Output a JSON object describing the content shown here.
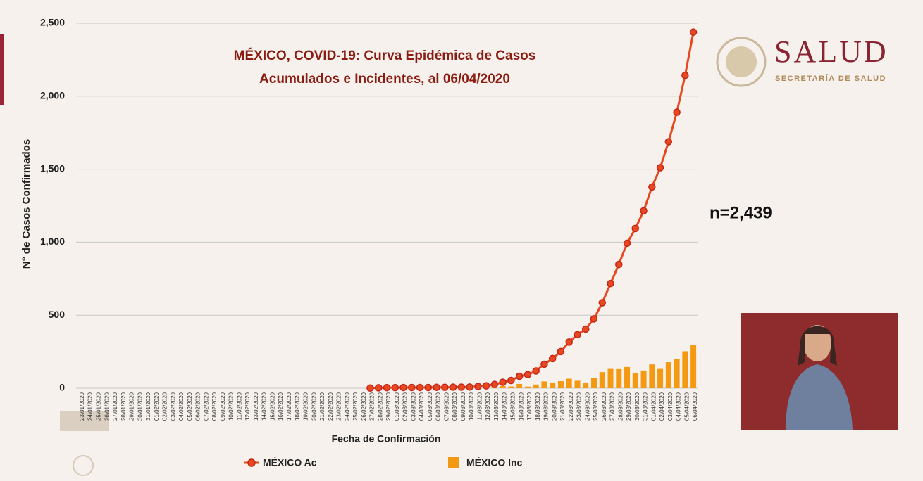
{
  "logo": {
    "title": "SALUD",
    "subtitle": "SECRETARÍA DE SALUD"
  },
  "chart_data": {
    "type": "line-bar",
    "title": [
      "MÉXICO, COVID-19: Curva Epidémica de Casos",
      "Acumulados e Incidentes, al 06/04/2020"
    ],
    "x_label": "Fecha de Confirmación",
    "y_label": "N° de Casos Confirmados",
    "annotation": "n=2,439",
    "legend": "bottom",
    "grid": true,
    "ylim": [
      0,
      2500
    ],
    "yticks": [
      0,
      500,
      {
        "value": 1000,
        "label": "1,000"
      },
      {
        "value": 1500,
        "label": "1,500"
      },
      {
        "value": 2000,
        "label": "2,000"
      },
      {
        "value": 2500,
        "label": "2,500"
      }
    ],
    "categories": [
      "23/01/2020",
      "24/01/2020",
      "25/01/2020",
      "26/01/2020",
      "27/01/2020",
      "28/01/2020",
      "29/01/2020",
      "30/01/2020",
      "31/01/2020",
      "01/02/2020",
      "02/02/2020",
      "03/02/2020",
      "04/02/2020",
      "05/02/2020",
      "06/02/2020",
      "07/02/2020",
      "08/02/2020",
      "09/02/2020",
      "10/02/2020",
      "11/02/2020",
      "12/02/2020",
      "13/02/2020",
      "14/02/2020",
      "15/02/2020",
      "16/02/2020",
      "17/02/2020",
      "18/02/2020",
      "19/02/2020",
      "20/02/2020",
      "21/02/2020",
      "22/02/2020",
      "23/02/2020",
      "24/02/2020",
      "25/02/2020",
      "26/02/2020",
      "27/02/2020",
      "28/02/2020",
      "29/02/2020",
      "01/03/2020",
      "02/03/2020",
      "03/03/2020",
      "04/03/2020",
      "05/03/2020",
      "06/03/2020",
      "07/03/2020",
      "08/03/2020",
      "09/03/2020",
      "10/03/2020",
      "11/03/2020",
      "12/03/2020",
      "13/03/2020",
      "14/03/2020",
      "15/03/2020",
      "16/03/2020",
      "17/03/2020",
      "18/03/2020",
      "19/03/2020",
      "20/03/2020",
      "21/03/2020",
      "22/03/2020",
      "23/03/2020",
      "24/03/2020",
      "25/03/2020",
      "26/03/2020",
      "27/03/2020",
      "28/03/2020",
      "29/03/2020",
      "30/03/2020",
      "31/03/2020",
      "01/04/2020",
      "02/04/2020",
      "03/04/2020",
      "04/04/2020",
      "05/04/2020",
      "06/04/2020"
    ],
    "series": [
      {
        "name": "MÉXICO Inc",
        "kind": "bar",
        "color": "#f39a12",
        "values": [
          0,
          0,
          0,
          0,
          0,
          0,
          0,
          0,
          0,
          0,
          0,
          0,
          0,
          0,
          0,
          0,
          0,
          0,
          0,
          0,
          0,
          0,
          0,
          0,
          0,
          0,
          0,
          0,
          0,
          0,
          0,
          0,
          0,
          0,
          0,
          1,
          2,
          1,
          0,
          1,
          0,
          0,
          0,
          1,
          0,
          1,
          0,
          1,
          4,
          4,
          10,
          15,
          12,
          29,
          11,
          25,
          46,
          39,
          48,
          65,
          51,
          38,
          70,
          110,
          132,
          131,
          145,
          101,
          121,
          163,
          132,
          178,
          202,
          253,
          296
        ]
      },
      {
        "name": "MÉXICO Ac",
        "kind": "line",
        "color": "#e8481f",
        "values": [
          null,
          null,
          null,
          null,
          null,
          null,
          null,
          null,
          null,
          null,
          null,
          null,
          null,
          null,
          null,
          null,
          null,
          null,
          null,
          null,
          null,
          null,
          null,
          null,
          null,
          null,
          null,
          null,
          null,
          null,
          null,
          null,
          null,
          null,
          null,
          1,
          3,
          4,
          4,
          5,
          5,
          5,
          5,
          6,
          6,
          7,
          7,
          8,
          12,
          16,
          26,
          41,
          53,
          82,
          93,
          118,
          164,
          203,
          251,
          316,
          367,
          405,
          475,
          585,
          717,
          848,
          993,
          1094,
          1215,
          1378,
          1510,
          1688,
          1890,
          2143,
          2439
        ]
      }
    ]
  }
}
